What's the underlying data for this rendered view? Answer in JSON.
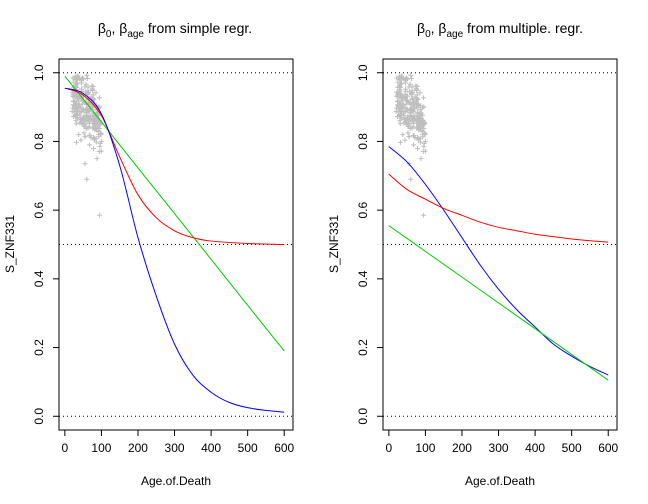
{
  "chart_data": [
    {
      "type": "scatter",
      "title": "β0, βage from simple regr.",
      "title_parts": {
        "b0": "β",
        "b0_sub": "0",
        "sep": ", ",
        "bage": "β",
        "bage_sub": "age",
        "rest": " from simple regr."
      },
      "xlabel": "Age.of.Death",
      "ylabel": "S_ZNF331",
      "xlim": [
        -16,
        624
      ],
      "ylim": [
        -0.04,
        1.04
      ],
      "xticks": [
        "0",
        "100",
        "200",
        "300",
        "400",
        "500",
        "600"
      ],
      "yticks": [
        "0.0",
        "0.2",
        "0.4",
        "0.6",
        "0.8",
        "1.0"
      ],
      "reference_lines_y": [
        0.0,
        0.5,
        1.0
      ],
      "scatter_color": "#bebebe",
      "series": [
        {
          "color": "#00cc00",
          "points": [
            [
              0,
              0.99
            ],
            [
              100,
              0.857
            ],
            [
              200,
              0.723
            ],
            [
              300,
              0.59
            ],
            [
              400,
              0.457
            ],
            [
              500,
              0.323
            ],
            [
              600,
              0.19
            ]
          ]
        },
        {
          "color": "#ff0000",
          "points": [
            [
              0,
              0.955
            ],
            [
              50,
              0.935
            ],
            [
              100,
              0.875
            ],
            [
              150,
              0.755
            ],
            [
              200,
              0.645
            ],
            [
              250,
              0.578
            ],
            [
              300,
              0.54
            ],
            [
              350,
              0.52
            ],
            [
              400,
              0.51
            ],
            [
              500,
              0.503
            ],
            [
              600,
              0.5
            ]
          ]
        },
        {
          "color": "#0000ff",
          "points": [
            [
              0,
              0.955
            ],
            [
              50,
              0.94
            ],
            [
              100,
              0.88
            ],
            [
              150,
              0.73
            ],
            [
              200,
              0.52
            ],
            [
              250,
              0.35
            ],
            [
              300,
              0.21
            ],
            [
              350,
              0.12
            ],
            [
              400,
              0.07
            ],
            [
              450,
              0.04
            ],
            [
              500,
              0.025
            ],
            [
              550,
              0.017
            ],
            [
              600,
              0.012
            ]
          ]
        }
      ]
    },
    {
      "type": "scatter",
      "title": "β0, βage from multiple. regr.",
      "title_parts": {
        "b0": "β",
        "b0_sub": "0",
        "sep": ", ",
        "bage": "β",
        "bage_sub": "age",
        "rest": " from multiple. regr."
      },
      "xlabel": "Age.of.Death",
      "ylabel": "S_ZNF331",
      "xlim": [
        -16,
        624
      ],
      "ylim": [
        -0.04,
        1.04
      ],
      "xticks": [
        "0",
        "100",
        "200",
        "300",
        "400",
        "500",
        "600"
      ],
      "yticks": [
        "0.0",
        "0.2",
        "0.4",
        "0.6",
        "0.8",
        "1.0"
      ],
      "reference_lines_y": [
        0.0,
        0.5,
        1.0
      ],
      "scatter_color": "#bebebe",
      "series": [
        {
          "color": "#0000ff",
          "points": [
            [
              0,
              0.785
            ],
            [
              50,
              0.74
            ],
            [
              100,
              0.675
            ],
            [
              150,
              0.6
            ],
            [
              200,
              0.52
            ],
            [
              250,
              0.44
            ],
            [
              300,
              0.37
            ],
            [
              350,
              0.31
            ],
            [
              400,
              0.26
            ],
            [
              450,
              0.21
            ],
            [
              500,
              0.175
            ],
            [
              550,
              0.145
            ],
            [
              600,
              0.12
            ]
          ]
        },
        {
          "color": "#ff0000",
          "points": [
            [
              0,
              0.705
            ],
            [
              50,
              0.66
            ],
            [
              100,
              0.632
            ],
            [
              150,
              0.605
            ],
            [
              200,
              0.585
            ],
            [
              250,
              0.565
            ],
            [
              300,
              0.55
            ],
            [
              350,
              0.54
            ],
            [
              400,
              0.53
            ],
            [
              450,
              0.523
            ],
            [
              500,
              0.516
            ],
            [
              550,
              0.511
            ],
            [
              600,
              0.507
            ]
          ]
        },
        {
          "color": "#00cc00",
          "points": [
            [
              0,
              0.555
            ],
            [
              100,
              0.48
            ],
            [
              200,
              0.405
            ],
            [
              300,
              0.33
            ],
            [
              400,
              0.255
            ],
            [
              500,
              0.18
            ],
            [
              600,
              0.105
            ]
          ]
        }
      ]
    }
  ]
}
